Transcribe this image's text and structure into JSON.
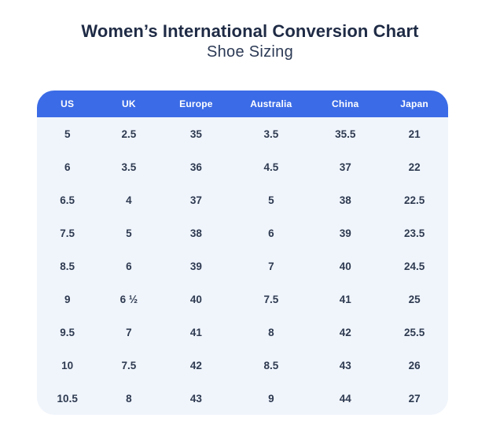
{
  "page": {
    "title": "Women’s International Conversion Chart",
    "subtitle": "Shoe Sizing"
  },
  "chart_data": {
    "type": "table",
    "title": "Women’s International Conversion Chart",
    "subtitle": "Shoe Sizing",
    "columns": [
      "US",
      "UK",
      "Europe",
      "Australia",
      "China",
      "Japan"
    ],
    "column_width_percents": [
      14.8,
      15.1,
      17.6,
      18.9,
      17.2,
      16.4
    ],
    "rows": [
      [
        "5",
        "2.5",
        "35",
        "3.5",
        "35.5",
        "21"
      ],
      [
        "6",
        "3.5",
        "36",
        "4.5",
        "37",
        "22"
      ],
      [
        "6.5",
        "4",
        "37",
        "5",
        "38",
        "22.5"
      ],
      [
        "7.5",
        "5",
        "38",
        "6",
        "39",
        "23.5"
      ],
      [
        "8.5",
        "6",
        "39",
        "7",
        "40",
        "24.5"
      ],
      [
        "9",
        "6 ½",
        "40",
        "7.5",
        "41",
        "25"
      ],
      [
        "9.5",
        "7",
        "41",
        "8",
        "42",
        "25.5"
      ],
      [
        "10",
        "7.5",
        "42",
        "8.5",
        "43",
        "26"
      ],
      [
        "10.5",
        "8",
        "43",
        "9",
        "44",
        "27"
      ]
    ]
  },
  "colors": {
    "header_bg": "#3b6be6",
    "body_bg": "#f0f5fc",
    "title_text": "#1f2b45",
    "subtitle_text": "#2c3a55",
    "cell_text": "#2e3a50",
    "header_text": "#ffffff"
  }
}
